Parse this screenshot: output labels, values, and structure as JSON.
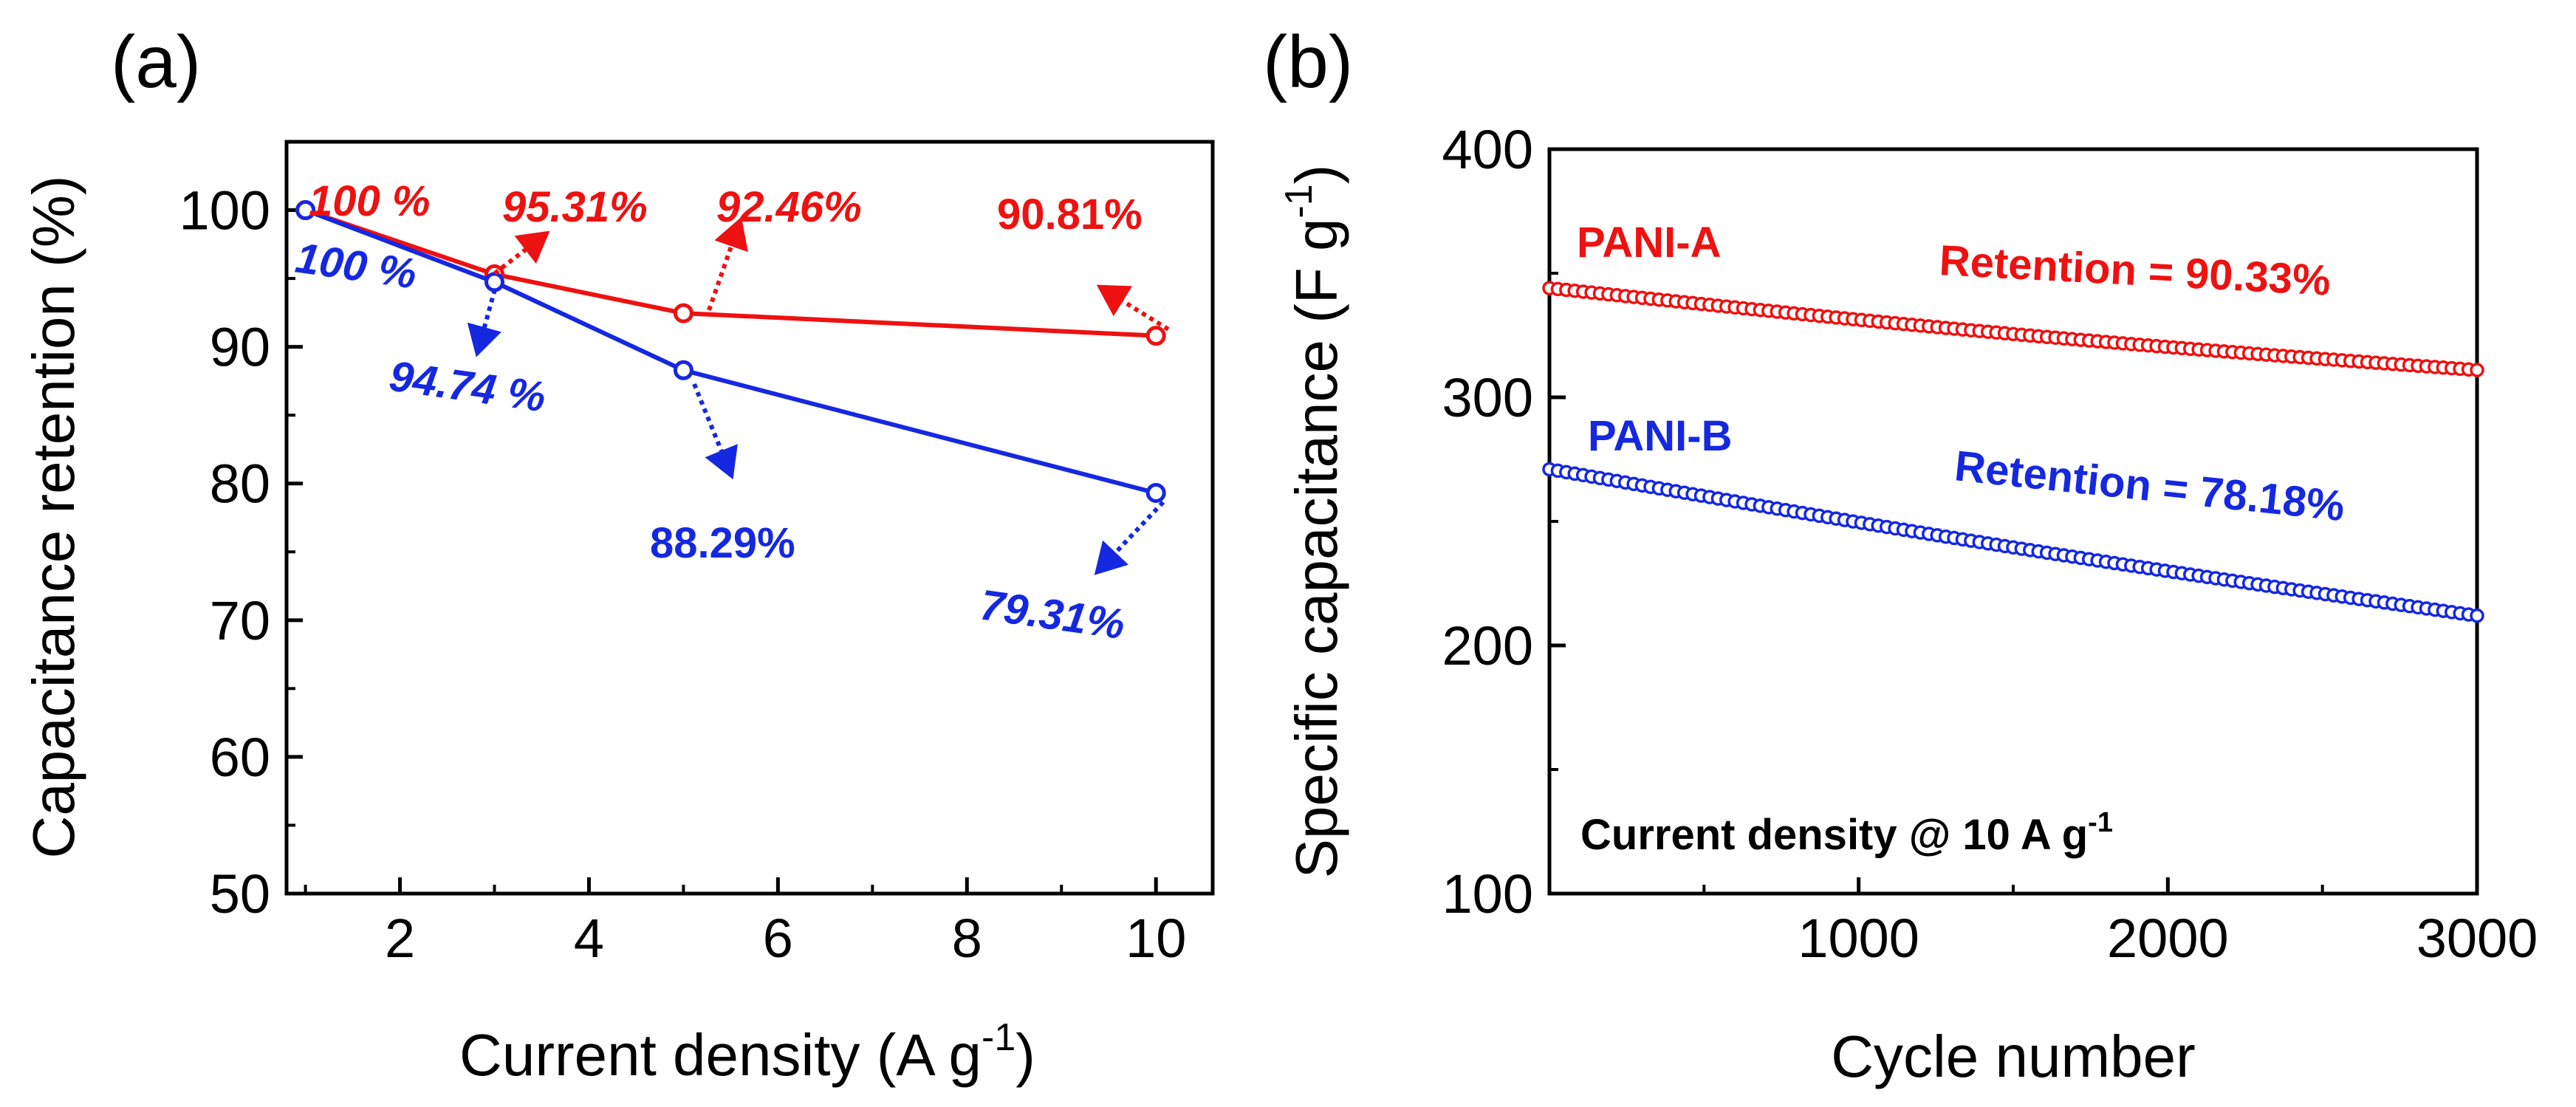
{
  "colors": {
    "panel_a": "#e41a1c",
    "panel_b": "#1f2bd6",
    "red": "#ee1111",
    "blue": "#1528e0",
    "axis": "#000000"
  },
  "chart_data": [
    {
      "panel_label": "(a)",
      "type": "line",
      "xlabel": "Current density (A g",
      "xlabel_sup": "-1",
      "xlabel_end": ")",
      "ylabel": "Capacitance retention (%)",
      "xlim": [
        0.8,
        10.6
      ],
      "ylim": [
        50,
        105
      ],
      "xticks": [
        2,
        4,
        6,
        8,
        10
      ],
      "yticks": [
        50,
        60,
        70,
        80,
        90,
        100
      ],
      "xtick_labels": [
        "2",
        "4",
        "6",
        "8",
        "10"
      ],
      "ytick_labels": [
        "50",
        "60",
        "70",
        "80",
        "90",
        "100"
      ],
      "series": [
        {
          "name": "PANI-A",
          "color": "#ee1111",
          "x": [
            1,
            3,
            5,
            10
          ],
          "y": [
            100,
            95.31,
            92.46,
            90.81
          ],
          "labels": [
            "100 %",
            "95.31%",
            "92.46%",
            "90.81%"
          ]
        },
        {
          "name": "PANI-B",
          "color": "#1528e0",
          "x": [
            1,
            3,
            5,
            10
          ],
          "y": [
            100,
            94.74,
            88.29,
            79.31
          ],
          "labels": [
            "100 %",
            "94.74 %",
            "88.29%",
            "79.31%"
          ]
        }
      ]
    },
    {
      "panel_label": "(b)",
      "type": "scatter",
      "xlabel": "Cycle number",
      "ylabel": "Specific capacitance (F g",
      "ylabel_sup": "-1",
      "ylabel_end": ")",
      "xlim": [
        0,
        3000
      ],
      "ylim": [
        100,
        400
      ],
      "xticks": [
        1000,
        2000,
        3000
      ],
      "yticks": [
        100,
        200,
        300,
        400
      ],
      "xtick_labels": [
        "1000",
        "2000",
        "3000"
      ],
      "ytick_labels": [
        "100",
        "200",
        "300",
        "400"
      ],
      "annotation": "Current density @ 10 A g",
      "annotation_sup": "-1",
      "series": [
        {
          "name": "PANI-A",
          "color": "#ee1111",
          "start": 344,
          "end": 311,
          "retention_label": "Retention = 90.33%"
        },
        {
          "name": "PANI-B",
          "color": "#1528e0",
          "start": 271,
          "end": 212,
          "retention_label": "Retention = 78.18%"
        }
      ]
    }
  ]
}
